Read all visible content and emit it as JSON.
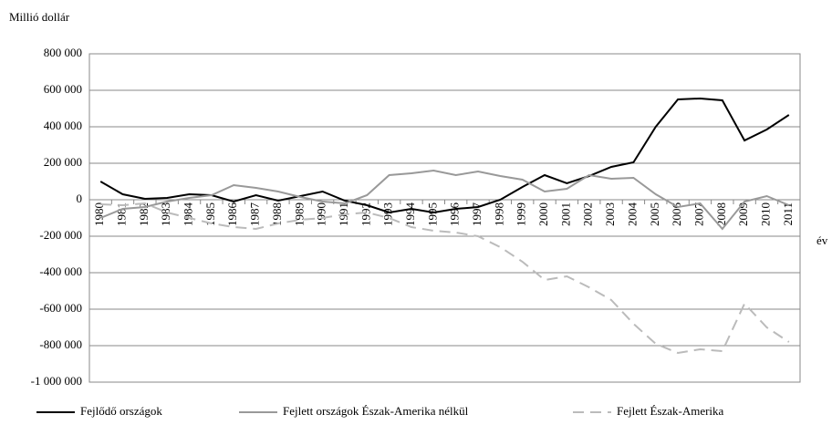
{
  "chart_data": {
    "type": "line",
    "title": "Millió dollár",
    "x_label": "év",
    "categories": [
      "1980",
      "1981",
      "1982",
      "1983",
      "1984",
      "1985",
      "1986",
      "1987",
      "1988",
      "1989",
      "1990",
      "1991",
      "1992",
      "1993",
      "1994",
      "1995",
      "1996",
      "1997",
      "1998",
      "1999",
      "2000",
      "2001",
      "2002",
      "2003",
      "2004",
      "2005",
      "2006",
      "2007",
      "2008",
      "2009",
      "2010",
      "2011"
    ],
    "series": [
      {
        "name": "Fejlődő országok",
        "color": "#000000",
        "dash": "none",
        "values": [
          100000,
          30000,
          5000,
          10000,
          30000,
          25000,
          -10000,
          25000,
          -5000,
          20000,
          45000,
          -5000,
          -30000,
          -70000,
          -50000,
          -70000,
          -50000,
          -40000,
          0,
          70000,
          135000,
          90000,
          130000,
          180000,
          205000,
          400000,
          550000,
          555000,
          545000,
          325000,
          385000,
          465000
        ]
      },
      {
        "name": "Fejlett országok Észak-Amerika nélkül",
        "color": "#999999",
        "dash": "none",
        "values": [
          -100000,
          -50000,
          -40000,
          -10000,
          10000,
          25000,
          80000,
          65000,
          45000,
          15000,
          -10000,
          -20000,
          25000,
          135000,
          145000,
          160000,
          135000,
          155000,
          130000,
          110000,
          45000,
          60000,
          135000,
          115000,
          120000,
          30000,
          -40000,
          -20000,
          -160000,
          -10000,
          20000,
          -30000
        ]
      },
      {
        "name": "Fejlett Észak-Amerika",
        "color": "#bbbbbb",
        "dash": "12 7",
        "values": [
          -25000,
          -30000,
          -20000,
          -70000,
          -100000,
          -130000,
          -150000,
          -160000,
          -130000,
          -110000,
          -100000,
          -80000,
          -70000,
          -100000,
          -150000,
          -170000,
          -180000,
          -200000,
          -260000,
          -340000,
          -440000,
          -420000,
          -480000,
          -550000,
          -680000,
          -790000,
          -840000,
          -820000,
          -830000,
          -570000,
          -700000,
          -780000
        ]
      }
    ],
    "ylim": [
      -1000000,
      800000
    ],
    "yticks": [
      {
        "value": -1000000,
        "label": "-1 000 000"
      },
      {
        "value": -800000,
        "label": "-800 000"
      },
      {
        "value": -600000,
        "label": "-600 000"
      },
      {
        "value": -400000,
        "label": "-400 000"
      },
      {
        "value": -200000,
        "label": "-200 000"
      },
      0,
      {
        "value": 200000,
        "label": "200 000"
      },
      {
        "value": 400000,
        "label": "400 000"
      },
      {
        "value": 600000,
        "label": "600 000"
      },
      {
        "value": 800000,
        "label": "800 000"
      }
    ],
    "grid": true,
    "legend": "bottom"
  }
}
